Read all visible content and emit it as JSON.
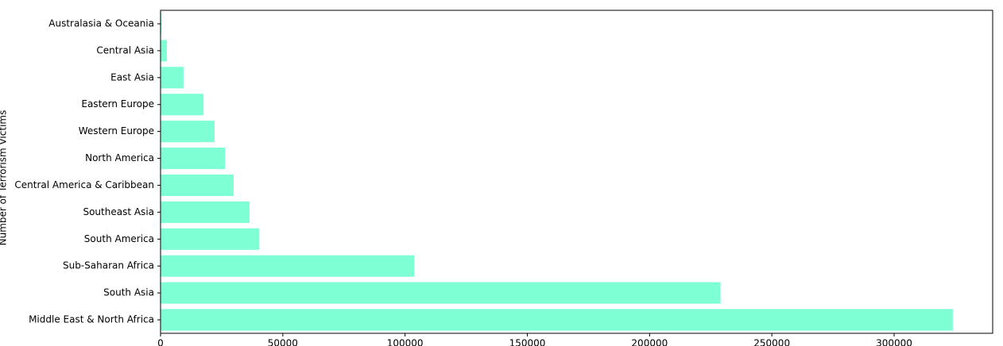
{
  "chart_data": {
    "type": "barh",
    "ylabel": "Number of Terrorism Victims",
    "categories": [
      "Australasia & Oceania",
      "Central Asia",
      "East Asia",
      "Eastern Europe",
      "Western Europe",
      "North America",
      "Central America & Caribbean",
      "Southeast Asia",
      "South America",
      "Sub-Saharan Africa",
      "South Asia",
      "Middle East & North Africa"
    ],
    "values": [
      300,
      2600,
      9400,
      17600,
      22100,
      26400,
      29900,
      36400,
      40400,
      103800,
      229000,
      324000
    ],
    "color": "#7fffd4",
    "xlim": [
      0,
      340300
    ],
    "xticks": [
      0,
      50000,
      100000,
      150000,
      200000,
      250000,
      300000
    ]
  }
}
